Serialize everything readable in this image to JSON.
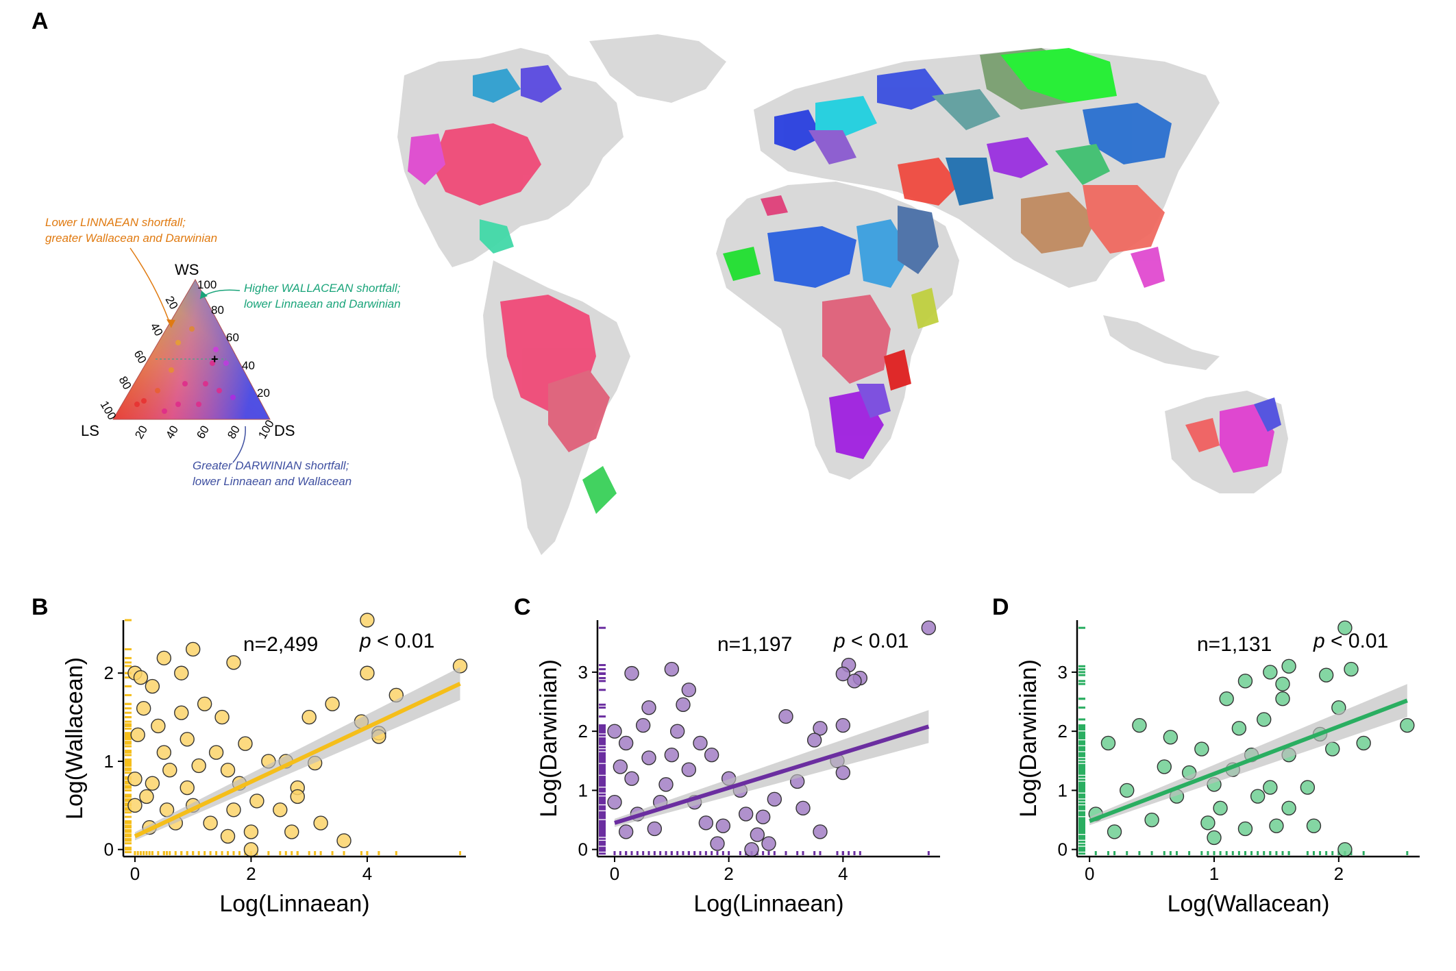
{
  "panel_labels": {
    "a": "A",
    "b": "B",
    "c": "C",
    "d": "D"
  },
  "colors": {
    "land": "#d9d9d9",
    "linnaean": "#f5be1a",
    "linnaean_fill": "#fbd46a",
    "darwinian_purple": "#6b2ea0",
    "darwinian_purple_fill": "#a27ec4",
    "wallacean_green": "#2aae61",
    "wallacean_green_fill": "#6fcf93",
    "lower_linnaean_note": "#e07a10",
    "higher_wallacean_note": "#1aa47a",
    "greater_darwinian_note": "#3e4fa0"
  },
  "map": {
    "ternary": {
      "vertex_labels": {
        "top": "WS",
        "left": "LS",
        "right": "DS"
      },
      "ticks": [
        "20",
        "40",
        "60",
        "80",
        "100"
      ],
      "notes": {
        "lower_linnaean": [
          "Lower LINNAEAN shortfall;",
          "greater Wallacean and Darwinian"
        ],
        "higher_wallacean": [
          "Higher WALLACEAN shortfall;",
          "lower Linnaean and Darwinian"
        ],
        "greater_darwinian": [
          "Greater DARWINIAN shortfall;",
          "lower Linnaean and Wallacean"
        ]
      }
    }
  },
  "chart_data": [
    {
      "panel": "B",
      "type": "scatter",
      "xlabel": "Log(Linnaean)",
      "ylabel": "Log(Wallacean)",
      "xlim": [
        -0.2,
        5.7
      ],
      "ylim": [
        -0.08,
        2.6
      ],
      "xticks": [
        0,
        2,
        4
      ],
      "yticks": [
        0,
        1,
        2
      ],
      "annotations": {
        "n": "n=2,499",
        "p_italic": "p",
        "p_rest": " < 0.01"
      },
      "fit": {
        "x": [
          0,
          5.6
        ],
        "y": [
          0.15,
          1.88
        ]
      },
      "color": "#f5be1a",
      "fill": "#fbd46a",
      "points": [
        [
          4.0,
          2.6
        ],
        [
          5.6,
          2.08
        ],
        [
          1.0,
          2.27
        ],
        [
          1.7,
          2.12
        ],
        [
          0.5,
          2.17
        ],
        [
          0.8,
          2.0
        ],
        [
          4.0,
          2.0
        ],
        [
          4.5,
          1.75
        ],
        [
          0.0,
          2.0
        ],
        [
          0.1,
          1.95
        ],
        [
          0.3,
          1.85
        ],
        [
          3.4,
          1.65
        ],
        [
          3.0,
          1.5
        ],
        [
          3.9,
          1.45
        ],
        [
          4.2,
          1.32
        ],
        [
          4.2,
          1.28
        ],
        [
          3.1,
          0.98
        ],
        [
          2.3,
          1.0
        ],
        [
          2.6,
          1.0
        ],
        [
          1.6,
          0.9
        ],
        [
          2.8,
          0.7
        ],
        [
          2.5,
          0.45
        ],
        [
          2.8,
          0.6
        ],
        [
          3.2,
          0.3
        ],
        [
          2.7,
          0.2
        ],
        [
          3.6,
          0.1
        ],
        [
          2.0,
          0.2
        ],
        [
          1.8,
          0.75
        ],
        [
          1.2,
          1.65
        ],
        [
          1.5,
          1.5
        ],
        [
          0.9,
          1.25
        ],
        [
          0.5,
          1.1
        ],
        [
          0.3,
          0.75
        ],
        [
          1.0,
          0.5
        ],
        [
          1.3,
          0.3
        ],
        [
          1.6,
          0.15
        ],
        [
          0.7,
          0.3
        ],
        [
          0.2,
          0.6
        ],
        [
          0.4,
          1.4
        ],
        [
          0.6,
          0.9
        ],
        [
          0.05,
          1.3
        ],
        [
          0.15,
          1.6
        ],
        [
          0.0,
          0.5
        ],
        [
          0.0,
          0.8
        ],
        [
          1.9,
          1.2
        ],
        [
          1.1,
          0.95
        ],
        [
          0.8,
          1.55
        ],
        [
          2.1,
          0.55
        ],
        [
          1.4,
          1.1
        ],
        [
          0.55,
          0.45
        ],
        [
          0.25,
          0.25
        ],
        [
          1.7,
          0.45
        ],
        [
          0.9,
          0.7
        ],
        [
          2.0,
          0.0
        ]
      ]
    },
    {
      "panel": "C",
      "type": "scatter",
      "xlabel": "Log(Linnaean)",
      "ylabel": "Log(Darwinian)",
      "xlim": [
        -0.3,
        5.7
      ],
      "ylim": [
        -0.12,
        3.88
      ],
      "xticks": [
        0,
        2,
        4
      ],
      "yticks": [
        0,
        1,
        2,
        3
      ],
      "annotations": {
        "n": "n=1,197",
        "p_italic": "p",
        "p_rest": " < 0.01"
      },
      "fit": {
        "x": [
          0,
          5.5
        ],
        "y": [
          0.45,
          2.08
        ]
      },
      "color": "#6b2ea0",
      "fill": "#a27ec4",
      "points": [
        [
          5.5,
          3.75
        ],
        [
          4.1,
          3.12
        ],
        [
          4.0,
          2.97
        ],
        [
          4.3,
          2.9
        ],
        [
          4.2,
          2.85
        ],
        [
          1.0,
          3.05
        ],
        [
          0.3,
          2.98
        ],
        [
          1.3,
          2.7
        ],
        [
          0.6,
          2.4
        ],
        [
          1.2,
          2.45
        ],
        [
          3.0,
          2.25
        ],
        [
          3.6,
          2.05
        ],
        [
          4.0,
          2.1
        ],
        [
          3.5,
          1.85
        ],
        [
          3.9,
          1.5
        ],
        [
          4.0,
          1.3
        ],
        [
          3.2,
          1.15
        ],
        [
          3.3,
          0.7
        ],
        [
          3.6,
          0.3
        ],
        [
          2.6,
          0.55
        ],
        [
          2.5,
          0.25
        ],
        [
          2.3,
          0.6
        ],
        [
          2.2,
          1.0
        ],
        [
          2.8,
          0.85
        ],
        [
          1.9,
          0.4
        ],
        [
          2.0,
          1.2
        ],
        [
          1.5,
          1.8
        ],
        [
          1.7,
          1.6
        ],
        [
          1.4,
          0.8
        ],
        [
          1.3,
          1.35
        ],
        [
          0.9,
          1.1
        ],
        [
          0.6,
          1.55
        ],
        [
          0.2,
          1.8
        ],
        [
          0.4,
          0.6
        ],
        [
          1.8,
          0.1
        ],
        [
          2.4,
          0.0
        ],
        [
          2.7,
          0.1
        ],
        [
          1.1,
          2.0
        ],
        [
          0.7,
          0.35
        ],
        [
          0.0,
          2.0
        ],
        [
          0.1,
          1.4
        ],
        [
          0.0,
          0.8
        ],
        [
          0.2,
          0.3
        ],
        [
          0.5,
          2.1
        ],
        [
          0.8,
          0.8
        ],
        [
          1.6,
          0.45
        ],
        [
          1.0,
          1.6
        ],
        [
          0.3,
          1.2
        ]
      ]
    },
    {
      "panel": "D",
      "type": "scatter",
      "xlabel": "Log(Wallacean)",
      "ylabel": "Log(Darwinian)",
      "xlim": [
        -0.1,
        2.65
      ],
      "ylim": [
        -0.12,
        3.88
      ],
      "xticks": [
        0,
        1,
        2
      ],
      "yticks": [
        0,
        1,
        2,
        3
      ],
      "annotations": {
        "n": "n=1,131",
        "p_italic": "p",
        "p_rest": " < 0.01"
      },
      "fit": {
        "x": [
          0,
          2.55
        ],
        "y": [
          0.48,
          2.52
        ]
      },
      "color": "#2aae61",
      "fill": "#6fcf93",
      "points": [
        [
          2.05,
          3.75
        ],
        [
          2.1,
          3.05
        ],
        [
          1.6,
          3.1
        ],
        [
          1.45,
          3.0
        ],
        [
          1.9,
          2.95
        ],
        [
          1.25,
          2.85
        ],
        [
          1.1,
          2.55
        ],
        [
          1.55,
          2.8
        ],
        [
          1.55,
          2.55
        ],
        [
          2.0,
          2.4
        ],
        [
          1.4,
          2.2
        ],
        [
          2.55,
          2.1
        ],
        [
          1.2,
          2.05
        ],
        [
          1.85,
          1.95
        ],
        [
          2.2,
          1.8
        ],
        [
          1.95,
          1.7
        ],
        [
          1.6,
          1.6
        ],
        [
          1.75,
          1.05
        ],
        [
          1.45,
          1.05
        ],
        [
          1.6,
          0.7
        ],
        [
          1.35,
          0.9
        ],
        [
          1.5,
          0.4
        ],
        [
          1.05,
          0.7
        ],
        [
          1.8,
          0.4
        ],
        [
          2.05,
          0.0
        ],
        [
          1.0,
          0.2
        ],
        [
          0.8,
          1.3
        ],
        [
          0.9,
          1.7
        ],
        [
          0.6,
          1.4
        ],
        [
          0.4,
          2.1
        ],
        [
          0.3,
          1.0
        ],
        [
          0.5,
          0.5
        ],
        [
          0.7,
          0.9
        ],
        [
          1.15,
          1.35
        ],
        [
          1.3,
          1.6
        ],
        [
          0.15,
          1.8
        ],
        [
          0.05,
          0.6
        ],
        [
          0.2,
          0.3
        ],
        [
          0.95,
          0.45
        ],
        [
          1.25,
          0.35
        ],
        [
          0.65,
          1.9
        ],
        [
          1.0,
          1.1
        ]
      ]
    }
  ]
}
